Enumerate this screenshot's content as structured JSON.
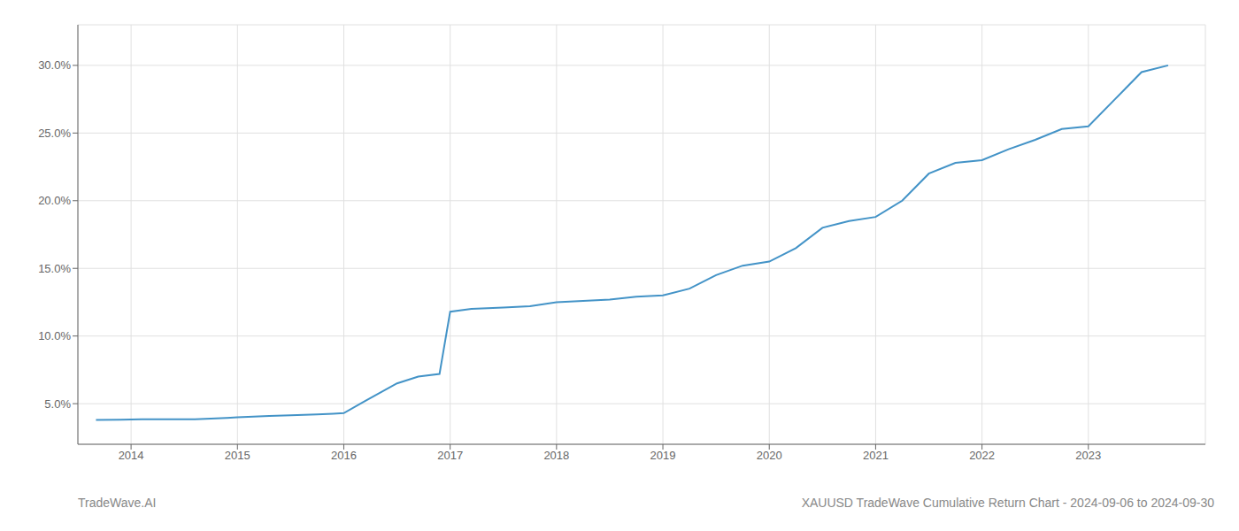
{
  "chart_data": {
    "type": "line",
    "annotations": [
      "TradeWave.AI",
      "XAUUSD TradeWave Cumulative Return Chart - 2024-09-06 to 2024-09-30"
    ],
    "x": [
      2013.67,
      2013.9,
      2014.1,
      2014.3,
      2014.6,
      2014.75,
      2014.9,
      2015.0,
      2015.15,
      2015.3,
      2015.5,
      2015.75,
      2015.9,
      2016.0,
      2016.2,
      2016.5,
      2016.7,
      2016.9,
      2017.0,
      2017.2,
      2017.5,
      2017.75,
      2018.0,
      2018.25,
      2018.5,
      2018.75,
      2019.0,
      2019.25,
      2019.5,
      2019.75,
      2020.0,
      2020.25,
      2020.5,
      2020.75,
      2021.0,
      2021.25,
      2021.5,
      2021.75,
      2022.0,
      2022.25,
      2022.5,
      2022.75,
      2023.0,
      2023.25,
      2023.5,
      2023.75
    ],
    "values": [
      3.8,
      3.82,
      3.84,
      3.85,
      3.85,
      3.9,
      3.95,
      4.0,
      4.05,
      4.1,
      4.15,
      4.2,
      4.25,
      4.3,
      5.2,
      6.5,
      7.0,
      7.2,
      11.8,
      12.0,
      12.1,
      12.2,
      12.5,
      12.6,
      12.7,
      12.9,
      13.0,
      13.5,
      14.5,
      15.2,
      15.5,
      16.5,
      18.0,
      18.5,
      18.8,
      20.0,
      22.0,
      22.8,
      23.0,
      23.8,
      24.5,
      25.3,
      25.5,
      27.5,
      29.5,
      30.0
    ],
    "color": "#4393c7",
    "xlim": [
      2013.5,
      2024.1
    ],
    "xticks": [
      2014,
      2015,
      2016,
      2017,
      2018,
      2019,
      2020,
      2021,
      2022,
      2023
    ],
    "ylim": [
      2.0,
      33.0
    ],
    "yticks": [
      {
        "value": 5.0,
        "label": "5.0%"
      },
      {
        "value": 10.0,
        "label": "10.0%"
      },
      {
        "value": 15.0,
        "label": "15.0%"
      },
      {
        "value": 20.0,
        "label": "20.0%"
      },
      {
        "value": 25.0,
        "label": "25.0%"
      },
      {
        "value": 30.0,
        "label": "30.0%"
      }
    ],
    "grid": true
  }
}
